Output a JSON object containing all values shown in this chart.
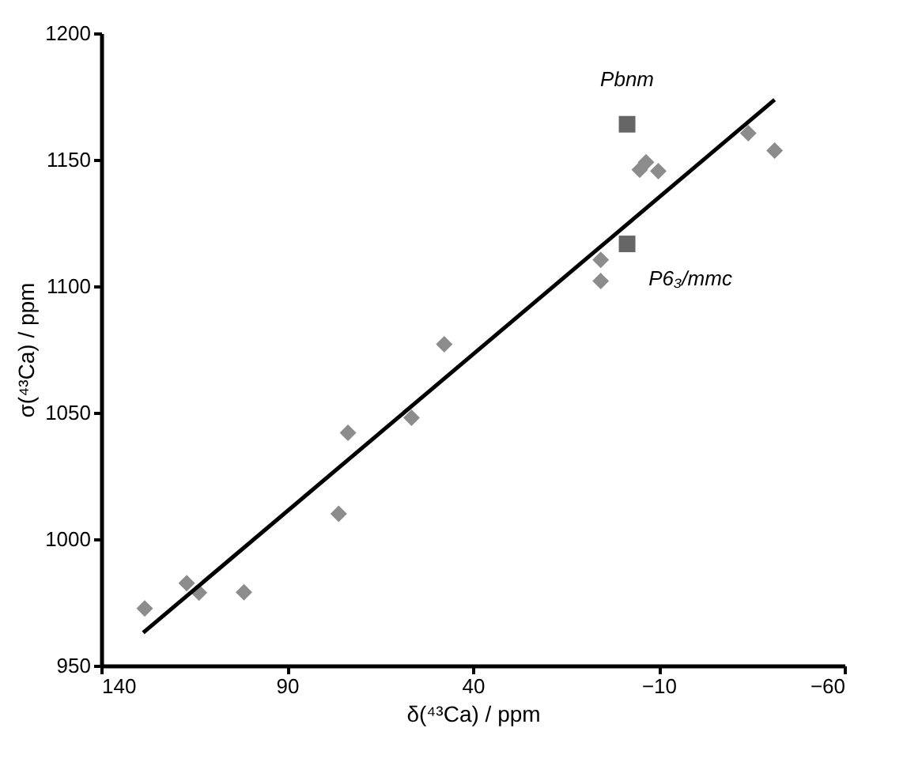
{
  "chart_data": {
    "type": "scatter",
    "xlabel": "δ(⁴³Ca) / ppm",
    "ylabel": "σ(⁴³Ca) / ppm",
    "xlim": [
      140,
      -60
    ],
    "xticks": [
      140,
      90,
      40,
      -10,
      -60
    ],
    "ylim": [
      950,
      1200
    ],
    "yticks": [
      950,
      1000,
      1050,
      1100,
      1150,
      1200
    ],
    "grid": false,
    "series": [
      {
        "marker": "diamond",
        "color": "#8c8c8c",
        "x": [
          128.3,
          117,
          113.7,
          101.6,
          76.1,
          73.6,
          56.5,
          47.7,
          5.6,
          5.6,
          -4.9,
          -6.6,
          -9.9,
          -34.1,
          -41.2
        ],
        "values": [
          972.6,
          982.6,
          978.8,
          979,
          1010,
          1042,
          1048,
          1077,
          1110.4,
          1102,
          1146,
          1149,
          1145.5,
          1160.5,
          1153.6
        ]
      },
      {
        "marker": "square",
        "color": "#666666",
        "x": [
          -1.5,
          -1.5
        ],
        "values": [
          1164,
          1116.7
        ]
      },
      {
        "type": "line",
        "marker": "none",
        "line_style": "solid",
        "color": "#000000",
        "x": [
          128.7,
          -41.2
        ],
        "values": [
          963,
          1173.7
        ]
      }
    ],
    "annotations": [
      {
        "text": "Pbnm",
        "x": -1.5,
        "y": 1164
      },
      {
        "text": "P6₃/mmc",
        "x": -1.5,
        "y": 1116.7
      }
    ]
  }
}
